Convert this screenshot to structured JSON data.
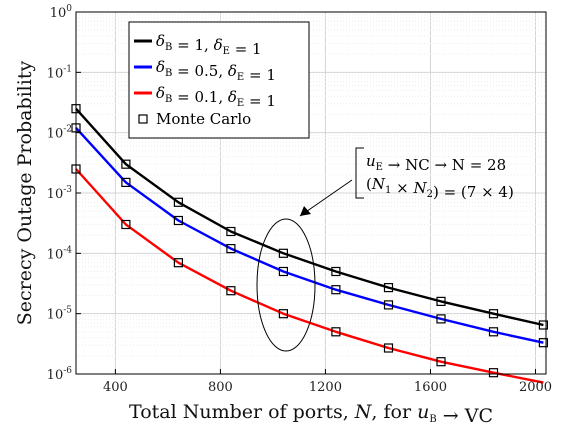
{
  "chart_data": {
    "type": "line",
    "xlabel": "Total Number of ports, N, for u_B → VC",
    "ylabel": "Secrecy Outage Probability",
    "xlim": [
      250,
      2040
    ],
    "ylim": [
      1e-06,
      1
    ],
    "yscale": "log",
    "grid": true,
    "x_ticks": [
      400,
      800,
      1200,
      1600,
      2000
    ],
    "y_ticks": [
      1,
      0.1,
      0.01,
      0.001,
      0.0001,
      1e-05,
      1e-06
    ],
    "y_tick_labels": [
      {
        "base": "10",
        "exp": "0"
      },
      {
        "base": "10",
        "exp": "-1"
      },
      {
        "base": "10",
        "exp": "-2"
      },
      {
        "base": "10",
        "exp": "-3"
      },
      {
        "base": "10",
        "exp": "-4"
      },
      {
        "base": "10",
        "exp": "-5"
      },
      {
        "base": "10",
        "exp": "-6"
      }
    ],
    "legend_position": "top-left",
    "series": [
      {
        "name": "δ_B = 1, δ_E = 1",
        "color": "#000000",
        "x": [
          250,
          440,
          640,
          840,
          1040,
          1240,
          1440,
          1640,
          1840,
          2030
        ],
        "y": [
          0.025,
          0.003,
          0.0007,
          0.00023,
          0.0001,
          5e-05,
          2.7e-05,
          1.6e-05,
          1e-05,
          6.5e-06
        ]
      },
      {
        "name": "δ_B = 0.5, δ_E = 1",
        "color": "#0000ff",
        "x": [
          250,
          440,
          640,
          840,
          1040,
          1240,
          1440,
          1640,
          1840,
          2030
        ],
        "y": [
          0.012,
          0.0015,
          0.00035,
          0.00012,
          5e-05,
          2.5e-05,
          1.4e-05,
          8.2e-06,
          5e-06,
          3.3e-06
        ]
      },
      {
        "name": "δ_B = 0.1, δ_E = 1",
        "color": "#ff0000",
        "x": [
          250,
          440,
          640,
          840,
          1040,
          1240,
          1440,
          1640,
          1840,
          2030
        ],
        "y": [
          0.0025,
          0.0003,
          7e-05,
          2.4e-05,
          1e-05,
          5e-06,
          2.7e-06,
          1.6e-06,
          1.05e-06,
          7.2e-07
        ]
      }
    ],
    "monte_carlo": {
      "name": "Monte Carlo",
      "marker": "square",
      "x": [
        250,
        440,
        640,
        840,
        1040,
        1240,
        1440,
        1640,
        1840,
        2030
      ],
      "series_index": [
        0,
        1,
        2
      ]
    },
    "annotation": {
      "line1": "u_E → NC → N = 28",
      "line2": "(N_1 × N_2) = (7 × 4)",
      "points_to_x": 1040
    }
  }
}
